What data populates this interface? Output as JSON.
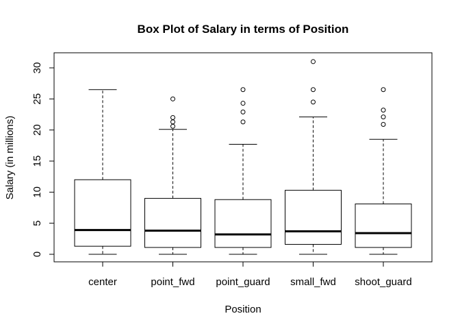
{
  "chart_data": {
    "type": "box",
    "title": "Box Plot of Salary in terms of Position",
    "xlabel": "Position",
    "ylabel": "Salary (in millions)",
    "ylim": [
      0,
      32
    ],
    "yticks": [
      0,
      5,
      10,
      15,
      20,
      25,
      30
    ],
    "categories": [
      "center",
      "point_fwd",
      "point_guard",
      "small_fwd",
      "shoot_guard"
    ],
    "boxes": [
      {
        "name": "center",
        "min": 0.0,
        "q1": 1.3,
        "median": 3.9,
        "q3": 12.0,
        "max": 26.5,
        "outliers": []
      },
      {
        "name": "point_fwd",
        "min": 0.0,
        "q1": 1.1,
        "median": 3.8,
        "q3": 9.0,
        "max": 20.1,
        "outliers": [
          20.6,
          21.3,
          22.0,
          25.0
        ]
      },
      {
        "name": "point_guard",
        "min": 0.0,
        "q1": 1.1,
        "median": 3.2,
        "q3": 8.8,
        "max": 17.7,
        "outliers": [
          21.3,
          22.9,
          24.3,
          26.5
        ]
      },
      {
        "name": "small_fwd",
        "min": 0.0,
        "q1": 1.6,
        "median": 3.7,
        "q3": 10.3,
        "max": 22.1,
        "outliers": [
          24.5,
          26.5,
          31.0
        ]
      },
      {
        "name": "shoot_guard",
        "min": 0.0,
        "q1": 1.1,
        "median": 3.4,
        "q3": 8.1,
        "max": 18.5,
        "outliers": [
          20.9,
          22.1,
          23.2,
          26.5
        ]
      }
    ],
    "grid": false,
    "legend": "none",
    "colors": {
      "box_fill": "#ffffff",
      "stroke": "#000000",
      "background": "#ffffff"
    }
  }
}
